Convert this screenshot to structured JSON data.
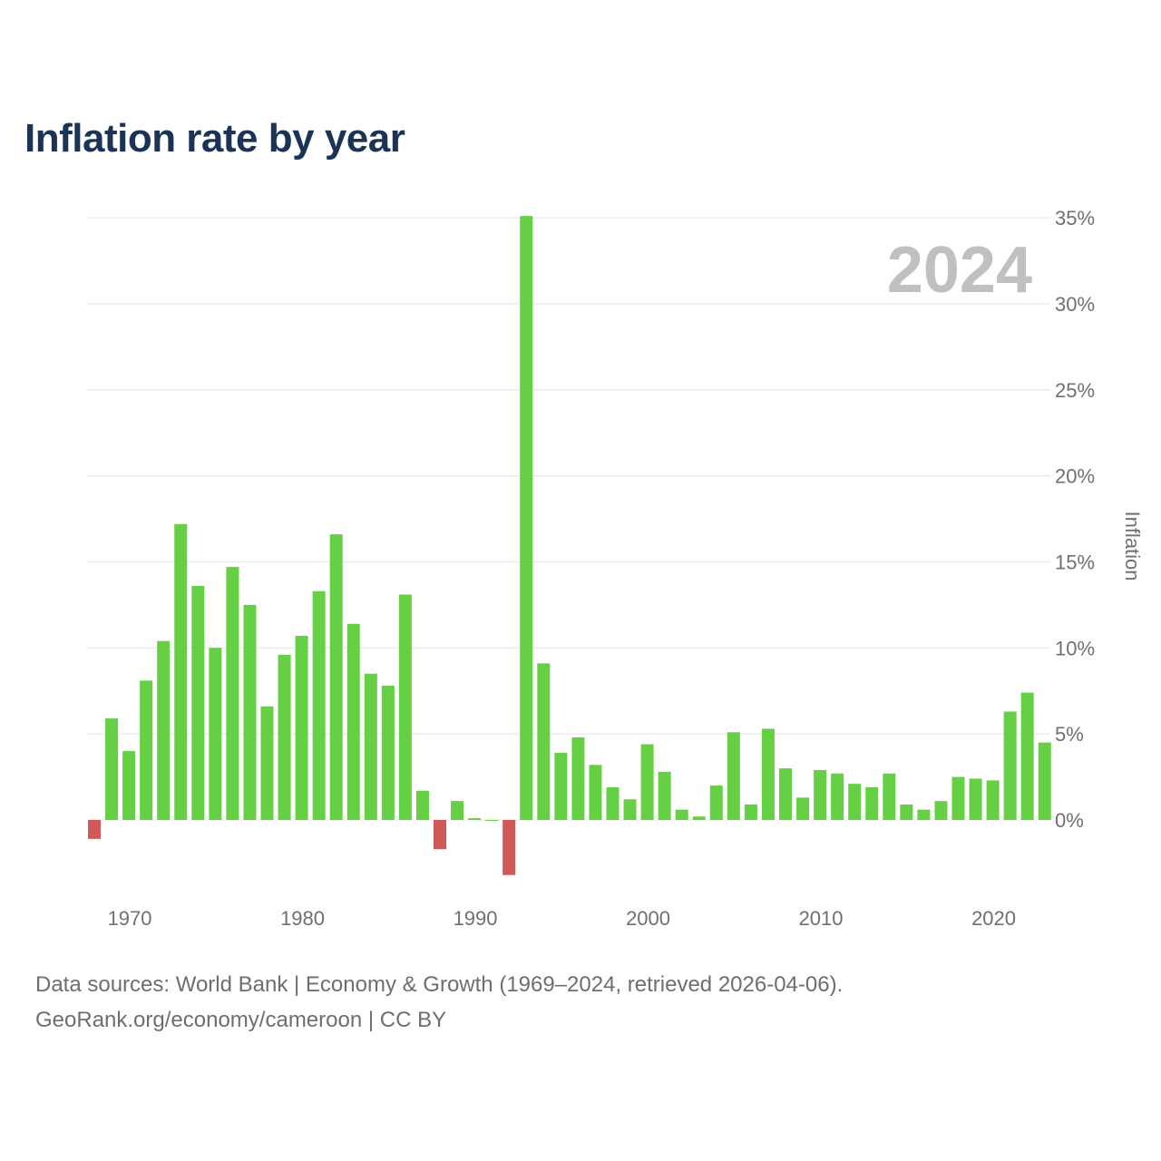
{
  "colors": {
    "positive": "#66d044",
    "negative": "#d05858",
    "title": "#1b3354",
    "axis_text": "#707070",
    "grid": "#e8e8e8",
    "year_watermark": "#c0c0c0"
  },
  "chart_data": {
    "type": "bar",
    "title": "Inflation rate by year",
    "ylabel": "Inflation",
    "xlabel": "",
    "ylim": [
      -5,
      35
    ],
    "y_ticks": [
      {
        "value": 0,
        "label": "0%"
      },
      {
        "value": 5,
        "label": "5%"
      },
      {
        "value": 10,
        "label": "10%"
      },
      {
        "value": 15,
        "label": "15%"
      },
      {
        "value": 20,
        "label": "20%"
      },
      {
        "value": 25,
        "label": "25%"
      },
      {
        "value": 30,
        "label": "30%"
      },
      {
        "value": 35,
        "label": "35%"
      }
    ],
    "x_ticks": [
      {
        "value": 1970,
        "label": "1970"
      },
      {
        "value": 1980,
        "label": "1980"
      },
      {
        "value": 1990,
        "label": "1990"
      },
      {
        "value": 2000,
        "label": "2000"
      },
      {
        "value": 2010,
        "label": "2010"
      },
      {
        "value": 2020,
        "label": "2020"
      }
    ],
    "highlight_year": "2024",
    "categories": [
      1969,
      1970,
      1971,
      1972,
      1973,
      1974,
      1975,
      1976,
      1977,
      1978,
      1979,
      1980,
      1981,
      1982,
      1983,
      1984,
      1985,
      1986,
      1987,
      1988,
      1989,
      1990,
      1991,
      1992,
      1993,
      1994,
      1995,
      1996,
      1997,
      1998,
      1999,
      2000,
      2001,
      2002,
      2003,
      2004,
      2005,
      2006,
      2007,
      2008,
      2009,
      2010,
      2011,
      2012,
      2013,
      2014,
      2015,
      2016,
      2017,
      2018,
      2019,
      2020,
      2021,
      2022,
      2023,
      2024
    ],
    "values": [
      -1.1,
      5.9,
      4.0,
      8.1,
      10.4,
      17.2,
      13.6,
      10.0,
      14.7,
      12.5,
      6.6,
      9.6,
      10.7,
      13.3,
      16.6,
      11.4,
      8.5,
      7.8,
      13.1,
      1.7,
      -1.7,
      1.1,
      0.1,
      0.0,
      -3.2,
      35.1,
      9.1,
      3.9,
      4.8,
      3.2,
      1.9,
      1.2,
      4.4,
      2.8,
      0.6,
      0.2,
      2.0,
      5.1,
      0.9,
      5.3,
      3.0,
      1.3,
      2.9,
      2.7,
      2.1,
      1.9,
      2.7,
      0.9,
      0.6,
      1.1,
      2.5,
      2.4,
      2.3,
      6.3,
      7.4,
      4.5
    ]
  },
  "footer": {
    "line1": "Data sources: World Bank | Economy & Growth (1969–2024, retrieved 2026-04-06).",
    "line2": "GeoRank.org/economy/cameroon | CC BY"
  }
}
